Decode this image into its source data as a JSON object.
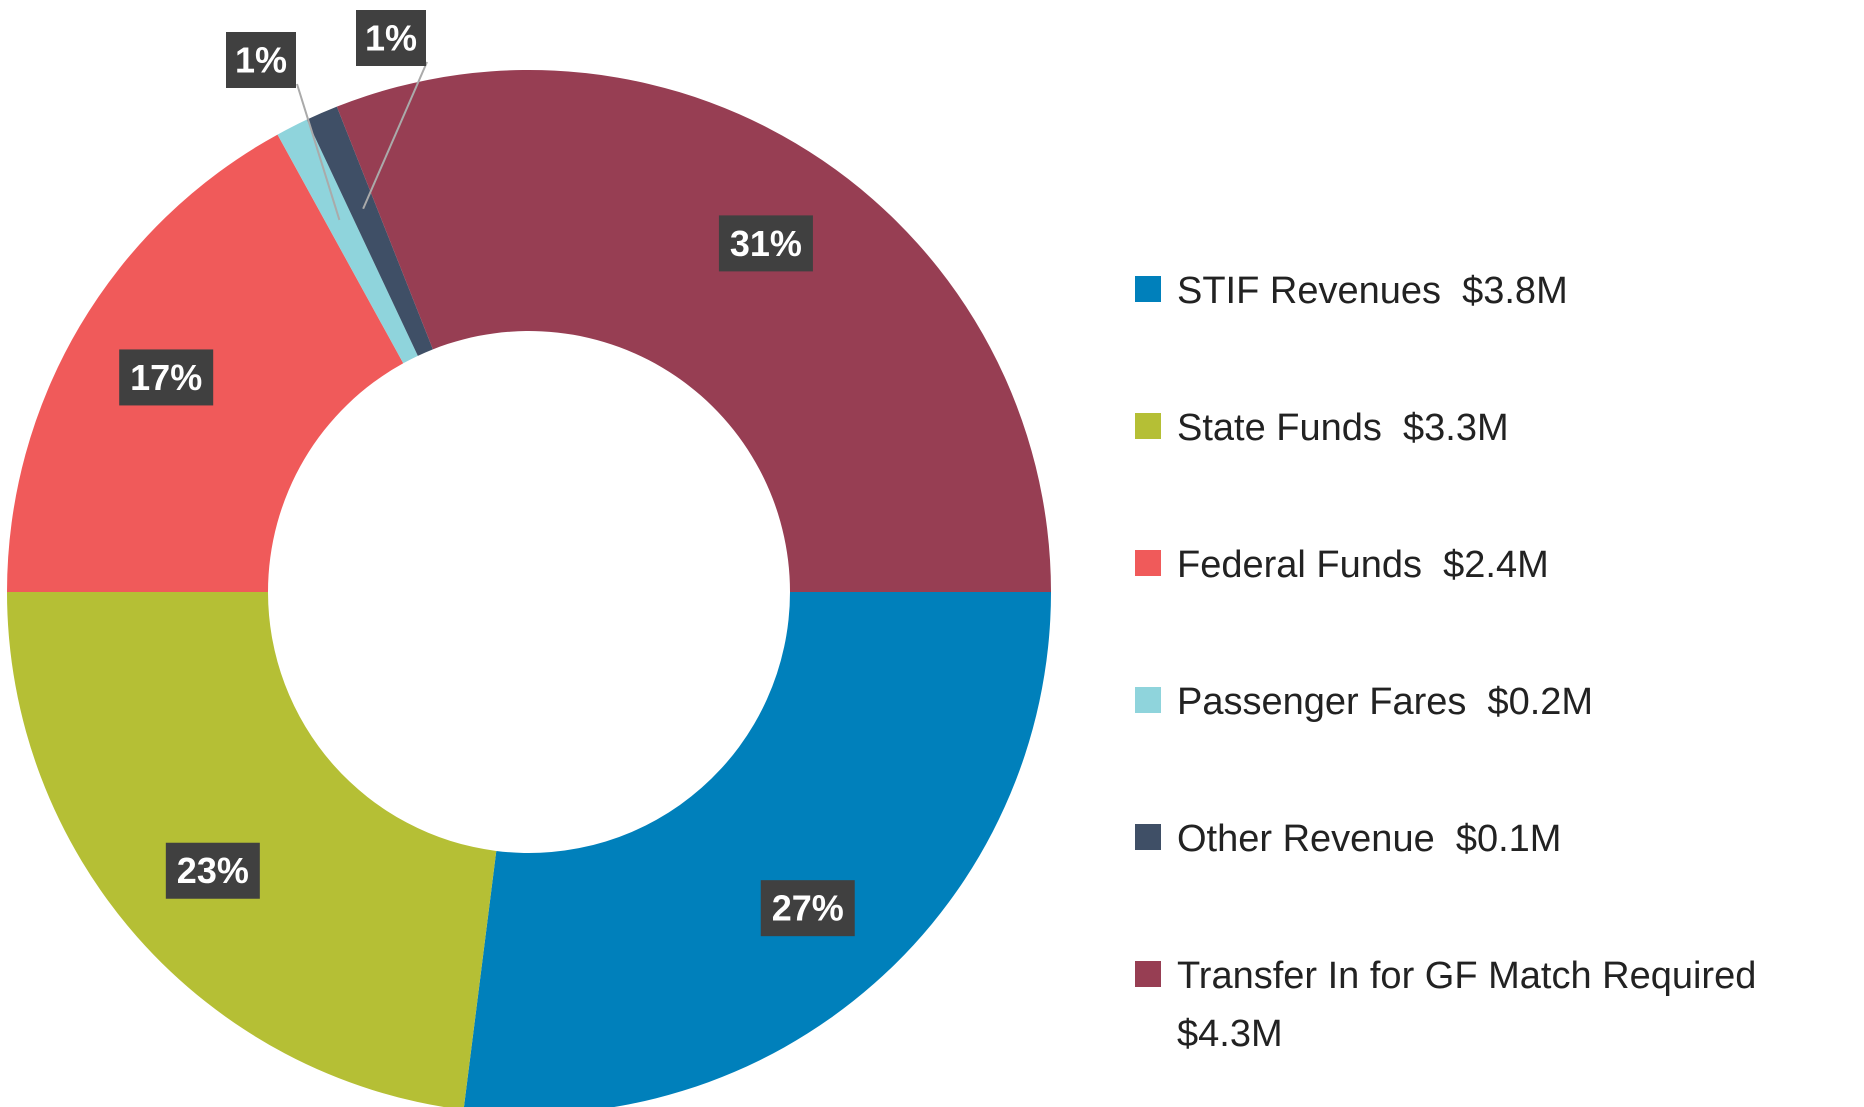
{
  "chart_data": {
    "type": "donut",
    "categories": [
      "STIF Revenues  $3.8M",
      "State Funds  $3.3M",
      "Federal Funds  $2.4M",
      "Passenger Fares  $0.2M",
      "Other Revenue  $0.1M",
      "Transfer In for GF Match Required $4.3M"
    ],
    "values": [
      27,
      23,
      17,
      1,
      1,
      31
    ],
    "value_labels": [
      "27%",
      "23%",
      "17%",
      "1%",
      "1%",
      "31%"
    ],
    "colors": [
      "#0080bb",
      "#b5bf35",
      "#f05a5a",
      "#8fd4dc",
      "#3f4f66",
      "#973e53"
    ],
    "legend": "right"
  }
}
